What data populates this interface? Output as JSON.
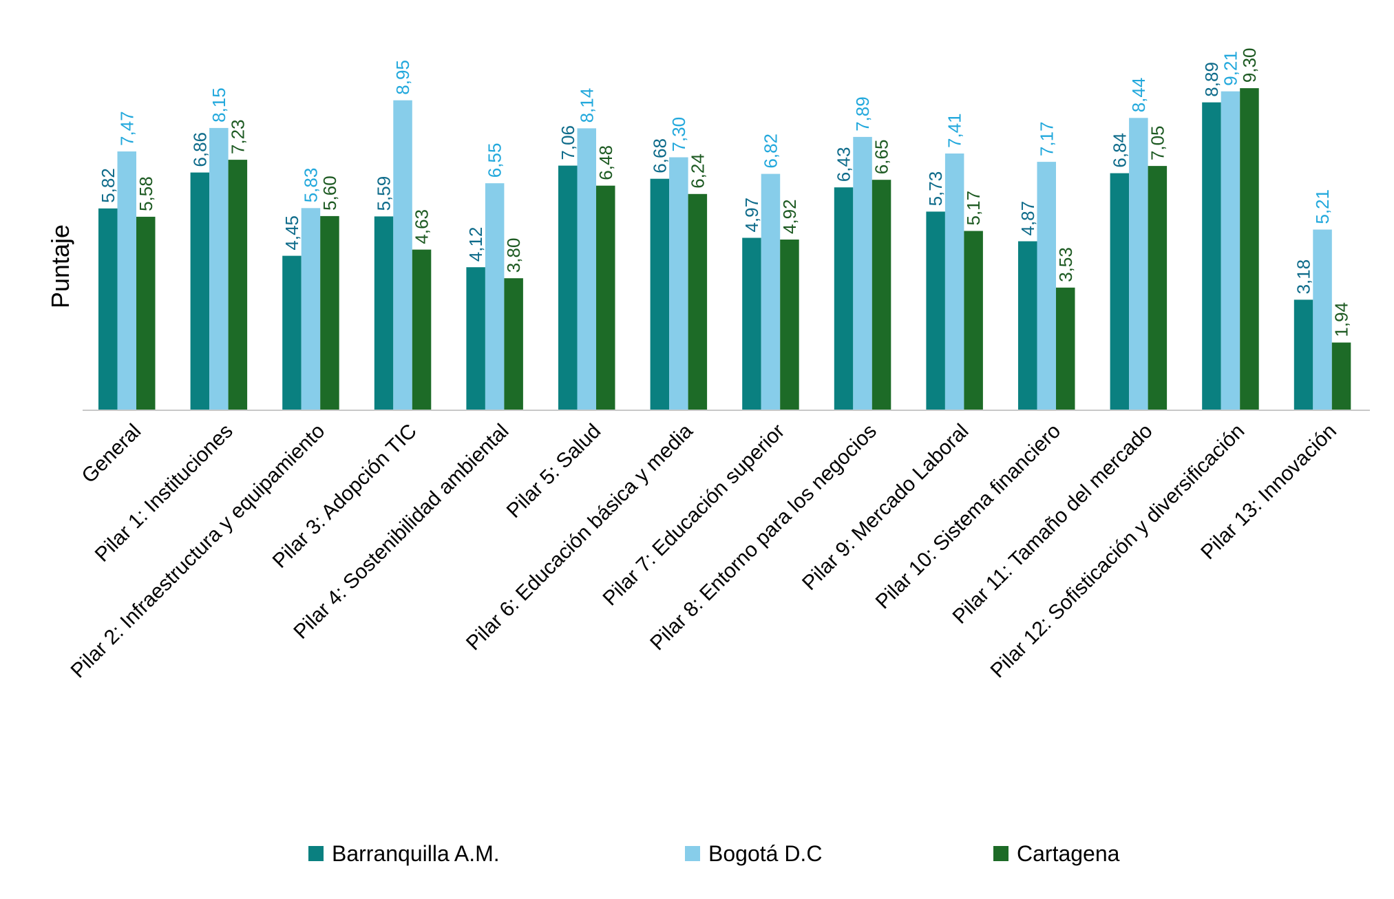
{
  "chart_data": {
    "type": "bar",
    "ylabel": "Puntaje",
    "xlabel": "",
    "ylim": [
      0,
      10
    ],
    "grid": false,
    "legend_position": "bottom",
    "categories": [
      "General",
      "Pilar 1: Instituciones",
      "Pilar 2: Infraestructura y equipamiento",
      "Pilar 3: Adopción TIC",
      "Pilar 4: Sostenibilidad ambiental",
      "Pilar 5: Salud",
      "Pilar 6: Educación básica y media",
      "Pilar 7: Educación superior",
      "Pilar 8: Entorno para los negocios",
      "Pilar 9: Mercado Laboral",
      "Pilar 10: Sistema financiero",
      "Pilar 11: Tamaño del mercado",
      "Pilar 12: Sofisticación y diversificación",
      "Pilar 13: Innovación"
    ],
    "series": [
      {
        "name": "Barranquilla A.M.",
        "color": "#0a8080",
        "label_color": "#0e6b8a",
        "values": [
          5.82,
          6.86,
          4.45,
          5.59,
          4.12,
          7.06,
          6.68,
          4.97,
          6.43,
          5.73,
          4.87,
          6.84,
          8.89,
          3.18
        ],
        "labels": [
          "5,82",
          "6,86",
          "4,45",
          "5,59",
          "4,12",
          "7,06",
          "6,68",
          "4,97",
          "6,43",
          "5,73",
          "4,87",
          "6,84",
          "8,89",
          "3,18"
        ]
      },
      {
        "name": "Bogotá D.C",
        "color": "#87cdea",
        "label_color": "#22a8dc",
        "values": [
          7.47,
          8.15,
          5.83,
          8.95,
          6.55,
          8.14,
          7.3,
          6.82,
          7.89,
          7.41,
          7.17,
          8.44,
          9.21,
          5.21
        ],
        "labels": [
          "7,47",
          "8,15",
          "5,83",
          "8,95",
          "6,55",
          "8,14",
          "7,30",
          "6,82",
          "7,89",
          "7,41",
          "7,17",
          "8,44",
          "9,21",
          "5,21"
        ]
      },
      {
        "name": "Cartagena",
        "color": "#1d6b27",
        "label_color": "#1d5a22",
        "values": [
          5.58,
          7.23,
          5.6,
          4.63,
          3.8,
          6.48,
          6.24,
          4.92,
          6.65,
          5.17,
          3.53,
          7.05,
          9.3,
          1.94
        ],
        "labels": [
          "5,58",
          "7,23",
          "5,60",
          "4,63",
          "3,80",
          "6,48",
          "6,24",
          "4,92",
          "6,65",
          "5,17",
          "3,53",
          "7,05",
          "9,30",
          "1,94"
        ]
      }
    ]
  },
  "colors": {
    "axis": "#c8c8c8"
  }
}
